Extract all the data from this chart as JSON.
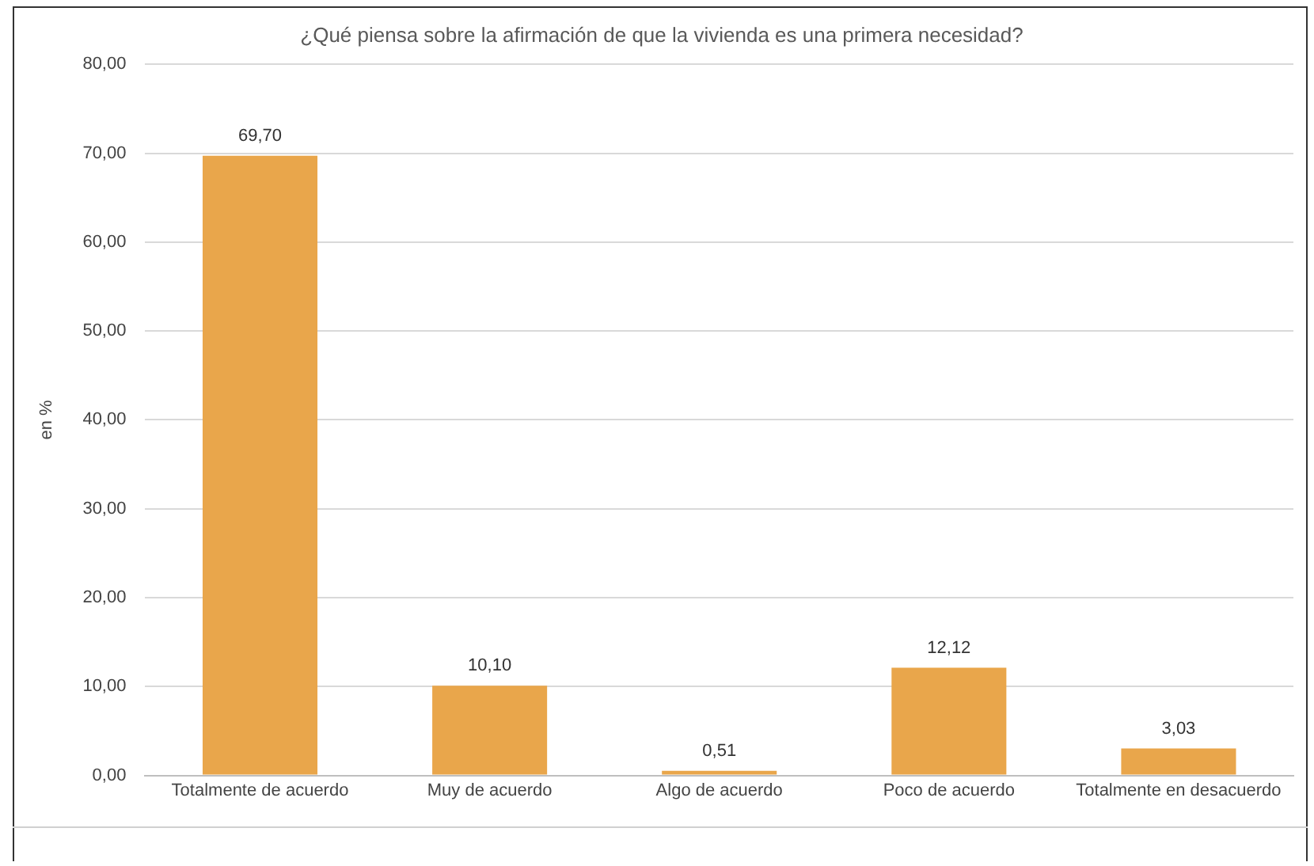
{
  "chart_data": {
    "type": "bar",
    "title": "¿Qué piensa sobre la afirmación de que la vivienda es una primera necesidad?",
    "ylabel": "en %",
    "categories": [
      "Totalmente de acuerdo",
      "Muy de acuerdo",
      "Algo de acuerdo",
      "Poco de acuerdo",
      "Totalmente en desacuerdo"
    ],
    "values": [
      69.7,
      10.1,
      0.51,
      12.12,
      3.03
    ],
    "value_labels": [
      "69,70",
      "10,10",
      "0,51",
      "12,12",
      "3,03"
    ],
    "color": "#e9a64b",
    "ylim": [
      0,
      80
    ],
    "yticks": [
      {
        "value": 0,
        "label": "0,00"
      },
      {
        "value": 10,
        "label": "10,00"
      },
      {
        "value": 20,
        "label": "20,00"
      },
      {
        "value": 30,
        "label": "30,00"
      },
      {
        "value": 40,
        "label": "40,00"
      },
      {
        "value": 50,
        "label": "50,00"
      },
      {
        "value": 60,
        "label": "60,00"
      },
      {
        "value": 70,
        "label": "70,00"
      },
      {
        "value": 80,
        "label": "80,00"
      }
    ],
    "grid": "y"
  }
}
